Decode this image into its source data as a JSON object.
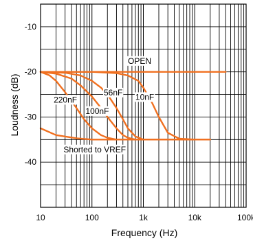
{
  "chart_data": {
    "type": "line",
    "title": "",
    "xlabel": "Frequency   (Hz)",
    "ylabel": "Loudness (dB)",
    "x_scale": "log",
    "xlim": [
      10,
      100000
    ],
    "ylim": [
      -50,
      -5
    ],
    "x_ticks": [
      10,
      100,
      1000,
      10000,
      100000
    ],
    "x_tick_labels": [
      "10",
      "100",
      "1k",
      "10k",
      "100k"
    ],
    "y_ticks": [
      -10,
      -20,
      -30,
      -40
    ],
    "y_tick_labels": [
      "-10",
      "-20",
      "-30",
      "-40"
    ],
    "grid": true,
    "line_color": "#f07020",
    "series": [
      {
        "id": "open",
        "x": [
          10,
          20,
          50,
          100,
          200,
          500,
          1000,
          5000,
          10000,
          40000
        ],
        "y": [
          -20,
          -20,
          -20,
          -20,
          -20,
          -20,
          -20,
          -20,
          -20,
          -20
        ]
      },
      {
        "id": "10nF",
        "x": [
          10,
          100,
          300,
          500,
          800,
          1000,
          1500,
          2000,
          3000,
          5000,
          10000,
          20000
        ],
        "y": [
          -20,
          -20,
          -20.3,
          -20.8,
          -22,
          -23.5,
          -27,
          -30,
          -33.5,
          -34.8,
          -35,
          -35
        ]
      },
      {
        "id": "56nF",
        "x": [
          10,
          30,
          60,
          100,
          150,
          200,
          300,
          400,
          500,
          700,
          1000,
          2000,
          5000,
          10000,
          20000
        ],
        "y": [
          -20,
          -20.2,
          -20.8,
          -22,
          -23.5,
          -25,
          -28,
          -30.5,
          -32.5,
          -34.3,
          -35,
          -35,
          -35,
          -35,
          -35
        ]
      },
      {
        "id": "100nF",
        "x": [
          10,
          20,
          40,
          60,
          100,
          150,
          200,
          300,
          400,
          500,
          700,
          1000,
          2000,
          5000
        ],
        "y": [
          -20,
          -20.4,
          -21.5,
          -23,
          -25.5,
          -28,
          -30,
          -32.5,
          -34,
          -34.6,
          -35,
          -35,
          -35,
          -35
        ]
      },
      {
        "id": "220nF",
        "x": [
          10,
          15,
          20,
          30,
          50,
          70,
          100,
          150,
          200,
          300,
          500,
          1000,
          2000
        ],
        "y": [
          -20,
          -20.8,
          -22,
          -24.5,
          -28,
          -30.5,
          -32.5,
          -34,
          -34.6,
          -35,
          -35,
          -35,
          -35
        ]
      },
      {
        "id": "shorted",
        "x": [
          10,
          20,
          50,
          100,
          200,
          500,
          1000,
          2000,
          5000,
          10000,
          20000
        ],
        "y": [
          -32.5,
          -34,
          -34.7,
          -35,
          -35,
          -35,
          -35,
          -35,
          -35,
          -35,
          -35
        ]
      }
    ],
    "annotations": [
      {
        "text": "OPEN",
        "x": 500,
        "y": -18.2
      },
      {
        "text": "10nF",
        "x": 700,
        "y": -26.2
      },
      {
        "text": "56nF",
        "x": 170,
        "y": -25.2
      },
      {
        "text": "100nF",
        "x": 75,
        "y": -29.3
      },
      {
        "text": "220nF",
        "x": 18,
        "y": -26.8
      },
      {
        "text": "Shorted to VREF",
        "x": 28,
        "y": -37.8
      }
    ]
  }
}
